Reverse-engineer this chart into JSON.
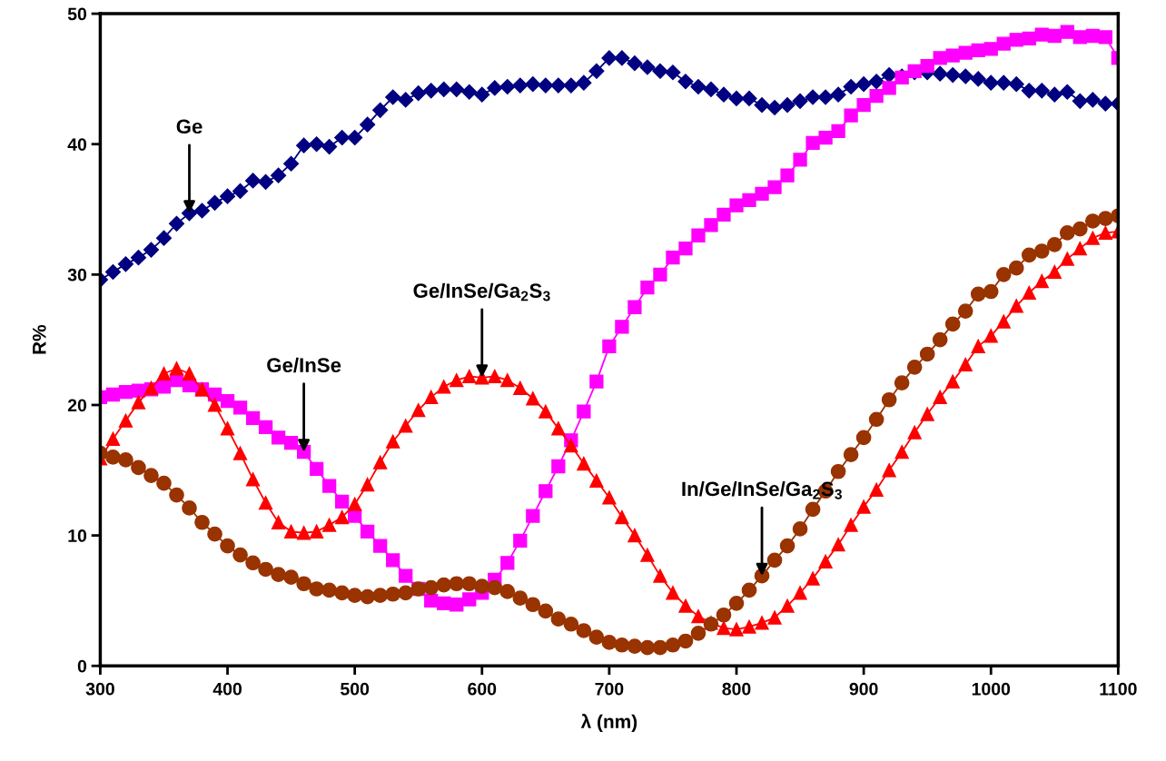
{
  "chart_data": {
    "type": "line",
    "xlabel": "λ (nm)",
    "ylabel": "R%",
    "xlim": [
      300,
      1100
    ],
    "ylim": [
      0,
      50
    ],
    "xticks": [
      300,
      400,
      500,
      600,
      700,
      800,
      900,
      1000,
      1100
    ],
    "yticks": [
      0,
      10,
      20,
      30,
      40,
      50
    ],
    "grid": false,
    "legend": false,
    "line_style": "solid",
    "x": [
      300,
      310,
      320,
      330,
      340,
      350,
      360,
      370,
      380,
      390,
      400,
      410,
      420,
      430,
      440,
      450,
      460,
      470,
      480,
      490,
      500,
      510,
      520,
      530,
      540,
      550,
      560,
      570,
      580,
      590,
      600,
      610,
      620,
      630,
      640,
      650,
      660,
      670,
      680,
      690,
      700,
      710,
      720,
      730,
      740,
      750,
      760,
      770,
      780,
      790,
      800,
      810,
      820,
      830,
      840,
      850,
      860,
      870,
      880,
      890,
      900,
      910,
      920,
      930,
      940,
      950,
      960,
      970,
      980,
      990,
      1000,
      1010,
      1020,
      1030,
      1040,
      1050,
      1060,
      1070,
      1080,
      1090,
      1100
    ],
    "series": [
      {
        "color": "#000080",
        "marker": "diamond",
        "values": [
          29.6,
          30.2,
          30.8,
          31.3,
          31.9,
          32.8,
          33.9,
          34.7,
          34.9,
          35.5,
          36.0,
          36.4,
          37.2,
          37.1,
          37.6,
          38.5,
          39.9,
          40.0,
          39.8,
          40.5,
          40.5,
          41.5,
          42.6,
          43.6,
          43.4,
          43.9,
          44.1,
          44.2,
          44.2,
          44.0,
          43.8,
          44.3,
          44.4,
          44.5,
          44.6,
          44.5,
          44.5,
          44.5,
          44.7,
          45.6,
          46.6,
          46.6,
          46.2,
          45.9,
          45.6,
          45.5,
          44.8,
          44.4,
          44.2,
          43.8,
          43.5,
          43.5,
          43.0,
          42.8,
          43.0,
          43.3,
          43.6,
          43.6,
          43.8,
          44.4,
          44.6,
          44.8,
          45.3,
          45.2,
          45.5,
          45.5,
          45.4,
          45.3,
          45.2,
          45.0,
          44.7,
          44.7,
          44.6,
          44.1,
          44.1,
          43.8,
          44.0,
          43.3,
          43.4,
          43.1,
          43.1
        ]
      },
      {
        "color": "#ff00ff",
        "marker": "square",
        "values": [
          20.6,
          20.8,
          21.0,
          21.1,
          21.2,
          21.4,
          21.9,
          21.5,
          21.2,
          20.8,
          20.3,
          19.8,
          19.0,
          18.3,
          17.5,
          17.1,
          16.4,
          15.1,
          13.8,
          12.6,
          11.5,
          10.3,
          9.2,
          8.1,
          6.9,
          5.9,
          5.0,
          4.8,
          4.7,
          5.1,
          5.6,
          6.6,
          7.9,
          9.6,
          11.5,
          13.4,
          15.3,
          17.3,
          19.5,
          21.8,
          24.5,
          26.0,
          27.5,
          29.0,
          30.0,
          31.3,
          32.0,
          33.0,
          33.8,
          34.6,
          35.3,
          35.7,
          36.2,
          36.7,
          37.6,
          38.8,
          40.1,
          40.5,
          41.0,
          42.2,
          43.0,
          43.7,
          44.3,
          45.1,
          45.6,
          46.0,
          46.6,
          46.8,
          47.0,
          47.2,
          47.3,
          47.7,
          48.0,
          48.1,
          48.4,
          48.3,
          48.6,
          48.2,
          48.3,
          48.2,
          46.6
        ]
      },
      {
        "color": "#ff0000",
        "marker": "triangle",
        "values": [
          15.9,
          17.4,
          18.8,
          20.2,
          21.3,
          22.4,
          22.8,
          22.4,
          21.2,
          20.0,
          18.2,
          16.3,
          14.3,
          12.5,
          11.0,
          10.3,
          10.2,
          10.3,
          10.8,
          11.4,
          12.4,
          13.9,
          15.6,
          17.2,
          18.4,
          19.6,
          20.6,
          21.4,
          21.9,
          22.2,
          22.1,
          22.2,
          21.9,
          21.3,
          20.5,
          19.5,
          18.2,
          16.9,
          15.5,
          14.2,
          12.9,
          11.4,
          10.0,
          8.5,
          6.9,
          5.6,
          4.6,
          3.8,
          3.3,
          2.9,
          2.8,
          3.0,
          3.3,
          3.7,
          4.6,
          5.6,
          6.7,
          8.0,
          9.3,
          10.8,
          12.2,
          13.5,
          15.0,
          16.4,
          17.9,
          19.3,
          20.6,
          21.8,
          23.1,
          24.5,
          25.3,
          26.4,
          27.6,
          28.6,
          29.5,
          30.2,
          31.2,
          32.0,
          32.8,
          33.2,
          33.3
        ]
      },
      {
        "color": "#993300",
        "marker": "circle",
        "values": [
          16.3,
          16.0,
          15.8,
          15.2,
          14.6,
          14.0,
          13.1,
          12.1,
          11.0,
          10.1,
          9.2,
          8.5,
          7.9,
          7.4,
          7.0,
          6.8,
          6.3,
          5.9,
          5.8,
          5.6,
          5.4,
          5.3,
          5.4,
          5.5,
          5.6,
          5.9,
          6.0,
          6.2,
          6.3,
          6.3,
          6.1,
          6.0,
          5.7,
          5.2,
          4.7,
          4.2,
          3.6,
          3.2,
          2.7,
          2.2,
          1.8,
          1.6,
          1.5,
          1.4,
          1.4,
          1.6,
          1.9,
          2.5,
          3.2,
          3.9,
          4.8,
          5.8,
          6.9,
          8.1,
          9.2,
          10.5,
          12.0,
          13.4,
          14.9,
          16.2,
          17.5,
          18.9,
          20.4,
          21.7,
          22.9,
          23.9,
          25.0,
          26.2,
          27.2,
          28.5,
          28.7,
          30.0,
          30.5,
          31.5,
          31.8,
          32.3,
          33.2,
          33.5,
          34.1,
          34.3,
          34.5
        ]
      }
    ],
    "annotations": [
      {
        "text": "Ge",
        "x": 370,
        "y": 34.7
      },
      {
        "text": "Ge/InSe",
        "x": 460,
        "y": 16.4
      },
      {
        "text": "Ge/InSe/Ga$_{2}$S$_{3}$",
        "x": 600,
        "y": 22.1
      },
      {
        "text": "In/Ge/InSe/Ga$_{2}$S$_{3}$",
        "x": 820,
        "y": 6.9
      }
    ]
  }
}
